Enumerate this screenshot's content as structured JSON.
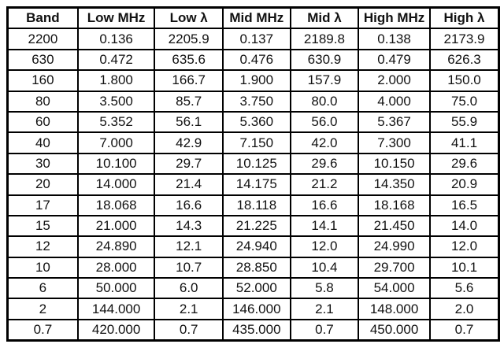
{
  "chart_data": {
    "type": "table",
    "headers": [
      "Band",
      "Low MHz",
      "Low λ",
      "Mid MHz",
      "Mid λ",
      "High MHz",
      "High λ"
    ],
    "rows": [
      [
        "2200",
        "0.136",
        "2205.9",
        "0.137",
        "2189.8",
        "0.138",
        "2173.9"
      ],
      [
        "630",
        "0.472",
        "635.6",
        "0.476",
        "630.9",
        "0.479",
        "626.3"
      ],
      [
        "160",
        "1.800",
        "166.7",
        "1.900",
        "157.9",
        "2.000",
        "150.0"
      ],
      [
        "80",
        "3.500",
        "85.7",
        "3.750",
        "80.0",
        "4.000",
        "75.0"
      ],
      [
        "60",
        "5.352",
        "56.1",
        "5.360",
        "56.0",
        "5.367",
        "55.9"
      ],
      [
        "40",
        "7.000",
        "42.9",
        "7.150",
        "42.0",
        "7.300",
        "41.1"
      ],
      [
        "30",
        "10.100",
        "29.7",
        "10.125",
        "29.6",
        "10.150",
        "29.6"
      ],
      [
        "20",
        "14.000",
        "21.4",
        "14.175",
        "21.2",
        "14.350",
        "20.9"
      ],
      [
        "17",
        "18.068",
        "16.6",
        "18.118",
        "16.6",
        "18.168",
        "16.5"
      ],
      [
        "15",
        "21.000",
        "14.3",
        "21.225",
        "14.1",
        "21.450",
        "14.0"
      ],
      [
        "12",
        "24.890",
        "12.1",
        "24.940",
        "12.0",
        "24.990",
        "12.0"
      ],
      [
        "10",
        "28.000",
        "10.7",
        "28.850",
        "10.4",
        "29.700",
        "10.1"
      ],
      [
        "6",
        "50.000",
        "6.0",
        "52.000",
        "5.8",
        "54.000",
        "5.6"
      ],
      [
        "2",
        "144.000",
        "2.1",
        "146.000",
        "2.1",
        "148.000",
        "2.0"
      ],
      [
        "0.7",
        "420.000",
        "0.7",
        "435.000",
        "0.7",
        "450.000",
        "0.7"
      ]
    ]
  },
  "colors": {
    "border": "#000000",
    "text": "#111111",
    "background": "#ffffff"
  }
}
